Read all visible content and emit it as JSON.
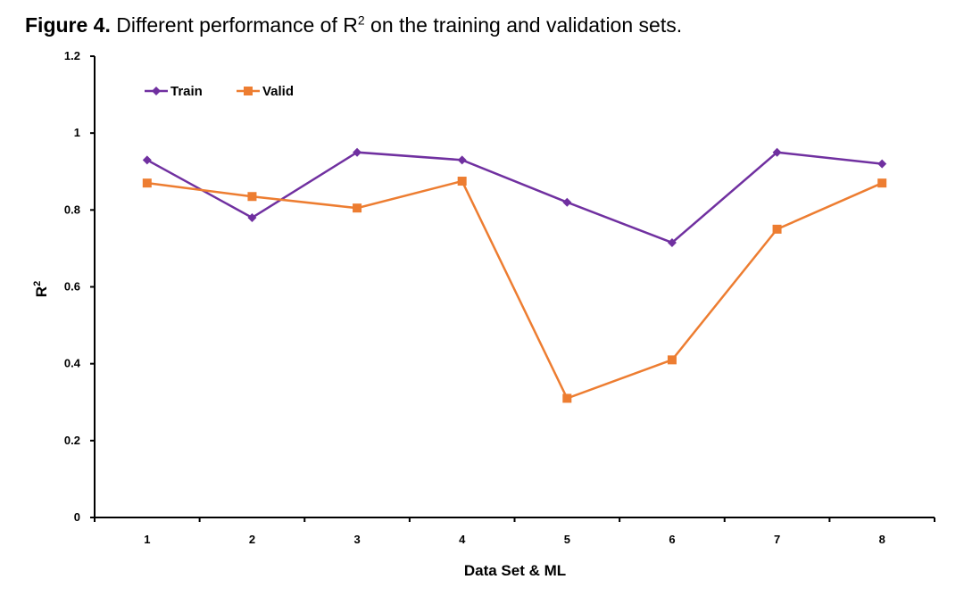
{
  "caption": {
    "label": "Figure 4.",
    "text_before": " Different performance of R",
    "superscript": "2",
    "text_after": " on the training and validation sets."
  },
  "chart_data": {
    "type": "line",
    "title": "",
    "xlabel": "Data Set & ML",
    "ylabel": "R",
    "ylabel_superscript": "2",
    "categories": [
      "1",
      "2",
      "3",
      "4",
      "5",
      "6",
      "7",
      "8"
    ],
    "ylim": [
      0,
      1.2
    ],
    "yticks": [
      "0",
      "0.2",
      "0.4",
      "0.6",
      "0.8",
      "1",
      "1.2"
    ],
    "grid": false,
    "legend_position": "top-left",
    "series": [
      {
        "name": "Train",
        "marker": "diamond",
        "color": "#7030A0",
        "values": [
          0.93,
          0.78,
          0.95,
          0.93,
          0.82,
          0.715,
          0.95,
          0.92
        ]
      },
      {
        "name": "Valid",
        "marker": "square",
        "color": "#ED7D31",
        "values": [
          0.87,
          0.835,
          0.805,
          0.875,
          0.31,
          0.41,
          0.75,
          0.87
        ]
      }
    ]
  }
}
